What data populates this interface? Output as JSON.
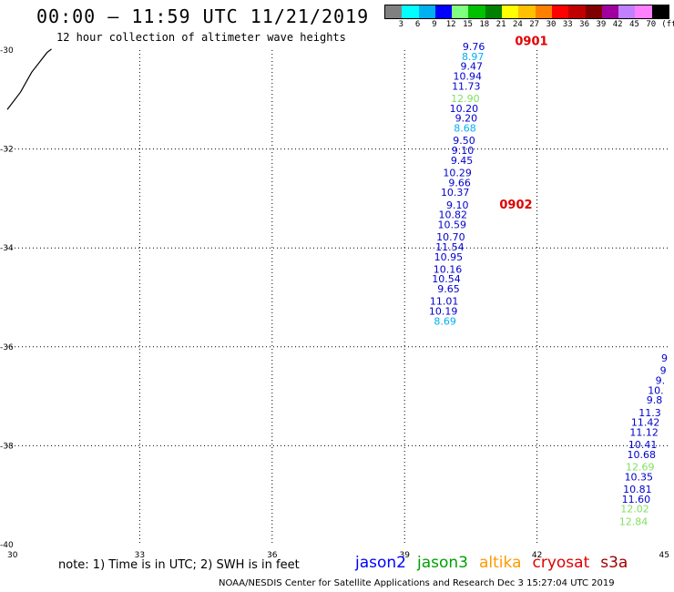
{
  "header": {
    "title": "00:00 — 11:59 UTC 11/21/2019",
    "subtitle": "12 hour collection of altimeter wave heights"
  },
  "legend": {
    "unit": "(ft)",
    "items": [
      {
        "label": "3",
        "color": "#808080"
      },
      {
        "label": "6",
        "color": "#00ffff"
      },
      {
        "label": "9",
        "color": "#00b0f0"
      },
      {
        "label": "12",
        "color": "#0000ff"
      },
      {
        "label": "15",
        "color": "#80ff80"
      },
      {
        "label": "18",
        "color": "#00c000"
      },
      {
        "label": "21",
        "color": "#008000"
      },
      {
        "label": "24",
        "color": "#ffff00"
      },
      {
        "label": "27",
        "color": "#ffc000"
      },
      {
        "label": "30",
        "color": "#ff8000"
      },
      {
        "label": "33",
        "color": "#ff0000"
      },
      {
        "label": "36",
        "color": "#c00000"
      },
      {
        "label": "39",
        "color": "#800000"
      },
      {
        "label": "42",
        "color": "#a000a0"
      },
      {
        "label": "45",
        "color": "#c080ff"
      },
      {
        "label": "70",
        "color": "#ff80ff"
      },
      {
        "label": "",
        "color": "#000000"
      }
    ]
  },
  "chart_data": {
    "type": "scatter",
    "xlim": [
      30,
      45
    ],
    "ylim": [
      -40,
      -30
    ],
    "x_ticks": [
      "30",
      "33",
      "36",
      "39",
      "42",
      "45"
    ],
    "y_ticks": [
      "-30",
      "-32",
      "-34",
      "-36",
      "-38",
      "-40"
    ],
    "grid": true,
    "coastline": [
      [
        30.0,
        -31.2
      ],
      [
        30.3,
        -30.85
      ],
      [
        30.55,
        -30.45
      ],
      [
        30.9,
        -30.05
      ],
      [
        31.0,
        -29.98
      ]
    ],
    "pass_labels": [
      {
        "text": "0901",
        "lon": 41.5,
        "lat": -29.9
      },
      {
        "text": "0902",
        "lon": 41.15,
        "lat": -33.2
      }
    ],
    "passes": [
      {
        "points": [
          {
            "lon": 40.82,
            "lat": -30.0,
            "value": "9.76",
            "color": "#0000cc"
          },
          {
            "lon": 40.8,
            "lat": -30.2,
            "value": "8.97",
            "color": "#00b0f0"
          },
          {
            "lon": 40.77,
            "lat": -30.4,
            "value": "9.47",
            "color": "#0000cc"
          },
          {
            "lon": 40.75,
            "lat": -30.6,
            "value": "10.94",
            "color": "#0000cc"
          },
          {
            "lon": 40.72,
            "lat": -30.8,
            "value": "11.73",
            "color": "#0000cc"
          },
          {
            "lon": 40.7,
            "lat": -31.05,
            "value": "12.90",
            "color": "#80e060"
          },
          {
            "lon": 40.67,
            "lat": -31.25,
            "value": "10.20",
            "color": "#0000cc"
          },
          {
            "lon": 40.65,
            "lat": -31.45,
            "value": "9.20",
            "color": "#0000cc"
          },
          {
            "lon": 40.62,
            "lat": -31.65,
            "value": "8.68",
            "color": "#00b0f0"
          },
          {
            "lon": 40.6,
            "lat": -31.9,
            "value": "9.50",
            "color": "#0000cc"
          },
          {
            "lon": 40.57,
            "lat": -32.1,
            "value": "9.10",
            "color": "#0000cc"
          },
          {
            "lon": 40.55,
            "lat": -32.3,
            "value": "9.45",
            "color": "#0000cc"
          },
          {
            "lon": 40.52,
            "lat": -32.55,
            "value": "10.29",
            "color": "#0000cc"
          },
          {
            "lon": 40.5,
            "lat": -32.75,
            "value": "9.66",
            "color": "#0000cc"
          },
          {
            "lon": 40.47,
            "lat": -32.95,
            "value": "10.37",
            "color": "#0000cc"
          },
          {
            "lon": 40.45,
            "lat": -33.2,
            "value": "9.10",
            "color": "#0000cc"
          },
          {
            "lon": 40.42,
            "lat": -33.4,
            "value": "10.82",
            "color": "#0000cc"
          },
          {
            "lon": 40.4,
            "lat": -33.6,
            "value": "10.59",
            "color": "#0000cc"
          },
          {
            "lon": 40.37,
            "lat": -33.85,
            "value": "10.70",
            "color": "#0000cc"
          },
          {
            "lon": 40.35,
            "lat": -34.05,
            "value": "11.54",
            "color": "#0000cc"
          },
          {
            "lon": 40.32,
            "lat": -34.25,
            "value": "10.95",
            "color": "#0000cc"
          },
          {
            "lon": 40.3,
            "lat": -34.5,
            "value": "10.16",
            "color": "#0000cc"
          },
          {
            "lon": 40.27,
            "lat": -34.7,
            "value": "10.54",
            "color": "#0000cc"
          },
          {
            "lon": 40.25,
            "lat": -34.9,
            "value": "9.65",
            "color": "#0000cc"
          },
          {
            "lon": 40.22,
            "lat": -35.15,
            "value": "11.01",
            "color": "#0000cc"
          },
          {
            "lon": 40.2,
            "lat": -35.35,
            "value": "10.19",
            "color": "#0000cc"
          },
          {
            "lon": 40.17,
            "lat": -35.55,
            "value": "8.69",
            "color": "#00b0f0"
          }
        ]
      },
      {
        "points": [
          {
            "lon": 44.96,
            "lat": -36.3,
            "value": "9",
            "color": "#0000cc"
          },
          {
            "lon": 44.93,
            "lat": -36.55,
            "value": "9",
            "color": "#0000cc"
          },
          {
            "lon": 44.9,
            "lat": -36.75,
            "value": "9.",
            "color": "#0000cc"
          },
          {
            "lon": 44.87,
            "lat": -36.95,
            "value": "10.",
            "color": "#0000cc"
          },
          {
            "lon": 44.84,
            "lat": -37.15,
            "value": "9.8",
            "color": "#0000cc"
          },
          {
            "lon": 44.81,
            "lat": -37.4,
            "value": "11.3",
            "color": "#0000cc"
          },
          {
            "lon": 44.78,
            "lat": -37.6,
            "value": "11.42",
            "color": "#0000cc"
          },
          {
            "lon": 44.75,
            "lat": -37.8,
            "value": "11.12",
            "color": "#0000cc"
          },
          {
            "lon": 44.72,
            "lat": -38.05,
            "value": "10.41",
            "color": "#0000cc"
          },
          {
            "lon": 44.69,
            "lat": -38.25,
            "value": "10.68",
            "color": "#0000cc"
          },
          {
            "lon": 44.66,
            "lat": -38.5,
            "value": "12.69",
            "color": "#80e060"
          },
          {
            "lon": 44.63,
            "lat": -38.7,
            "value": "10.35",
            "color": "#0000cc"
          },
          {
            "lon": 44.6,
            "lat": -38.95,
            "value": "10.81",
            "color": "#0000cc"
          },
          {
            "lon": 44.57,
            "lat": -39.15,
            "value": "11.60",
            "color": "#0000cc"
          },
          {
            "lon": 44.54,
            "lat": -39.35,
            "value": "12.02",
            "color": "#80e060"
          },
          {
            "lon": 44.51,
            "lat": -39.6,
            "value": "12.84",
            "color": "#80e060"
          }
        ]
      }
    ]
  },
  "note": "note:  1) Time is in UTC;  2) SWH is in feet",
  "satellites": [
    {
      "name": "jason2",
      "color": "#0000ff"
    },
    {
      "name": "jason3",
      "color": "#00a000"
    },
    {
      "name": "altika",
      "color": "#ff9900"
    },
    {
      "name": "cryosat",
      "color": "#e00000"
    },
    {
      "name": "s3a",
      "color": "#a00000"
    }
  ],
  "footer": "NOAA/NESDIS Center for Satellite Applications and Research    Dec  3 15:27:04 UTC 2019"
}
